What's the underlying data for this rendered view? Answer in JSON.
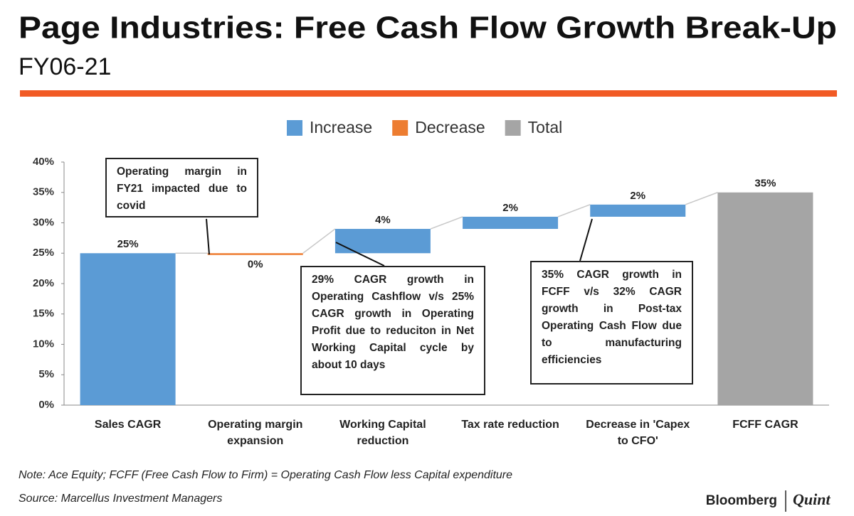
{
  "header": {
    "title": "Page Industries: Free Cash Flow Growth Break-Up",
    "subtitle": "FY06-21"
  },
  "chart_data": {
    "type": "waterfall",
    "categories": [
      "Sales CAGR",
      "Operating margin expansion",
      "Working Capital reduction",
      "Tax rate reduction",
      "Decrease in 'Capex to CFO'",
      "FCFF CAGR"
    ],
    "series": [
      {
        "name": "Increase",
        "color": "#5b9bd5",
        "values": [
          25,
          null,
          4,
          2,
          2,
          null
        ],
        "value_labels": [
          "25%",
          null,
          "4%",
          "2%",
          "2%",
          null
        ]
      },
      {
        "name": "Decrease",
        "color": "#ed7d31",
        "values": [
          null,
          0,
          null,
          null,
          null,
          null
        ],
        "value_labels": [
          null,
          "0%",
          null,
          null,
          null,
          null
        ]
      },
      {
        "name": "Total",
        "color": "#a5a5a5",
        "values": [
          null,
          null,
          null,
          null,
          null,
          35
        ],
        "value_labels": [
          null,
          null,
          null,
          null,
          null,
          "35%"
        ]
      }
    ],
    "ylim": [
      0,
      40
    ],
    "yticks": [
      {
        "value": 0,
        "label": "0%"
      },
      {
        "value": 5,
        "label": "5%"
      },
      {
        "value": 10,
        "label": "10%"
      },
      {
        "value": 15,
        "label": "15%"
      },
      {
        "value": 20,
        "label": "20%"
      },
      {
        "value": 25,
        "label": "25%"
      },
      {
        "value": 30,
        "label": "30%"
      },
      {
        "value": 35,
        "label": "35%"
      },
      {
        "value": 40,
        "label": "40%"
      }
    ],
    "legend": "top",
    "annotations": [
      "Operating margin in FY21 impacted due to covid",
      "29% CAGR growth in Operating Cashflow v/s 25% CAGR growth in Operating Profit due to reduciton in Net Working Capital cycle by about 10 days",
      "35% CAGR growth in FCFF v/s 32% CAGR growth in Post-tax Operating Cash Flow due to manufacturing efficiencies"
    ]
  },
  "footer": {
    "note": "Note: Ace Equity; FCFF (Free Cash Flow to Firm) = Operating Cash Flow less Capital expenditure",
    "source": "Source: Marcellus Investment Managers",
    "brand": "Bloomberg",
    "brand2": "Quint"
  }
}
